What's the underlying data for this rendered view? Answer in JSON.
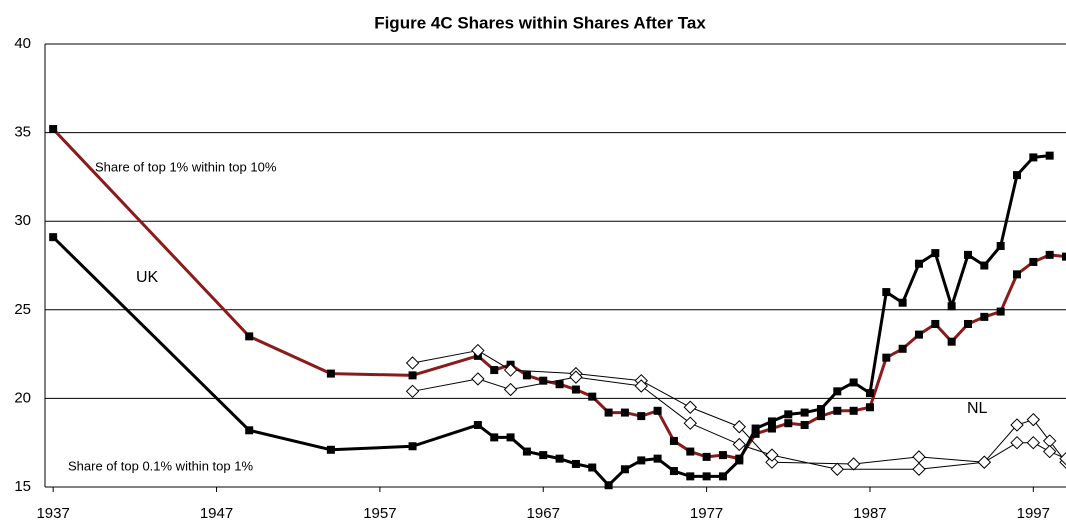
{
  "chart_data": {
    "type": "line",
    "title": "Figure 4C  Shares within Shares After Tax",
    "annotations": [
      "Share of top 1% within top 10%",
      "UK",
      "NL",
      "Share of top 0.1% within top 1%"
    ],
    "xlim": [
      1936.5,
      1999
    ],
    "xticks": [
      1937,
      1947,
      1957,
      1967,
      1977,
      1987,
      1997
    ],
    "ylim": [
      15,
      40
    ],
    "yticks": [
      15,
      20,
      25,
      30,
      35,
      40
    ],
    "grid": true,
    "series": [
      {
        "color": "#8b1a1a",
        "marker": "square",
        "line_width": 3,
        "x": [
          1937,
          1949,
          1954,
          1959,
          1963,
          1964,
          1965,
          1966,
          1967,
          1968,
          1969,
          1970,
          1971,
          1972,
          1973,
          1974,
          1975,
          1976,
          1977,
          1978,
          1979,
          1980,
          1981,
          1982,
          1983,
          1984,
          1985,
          1986,
          1987,
          1988,
          1989,
          1990,
          1991,
          1992,
          1993,
          1994,
          1995,
          1996,
          1997,
          1998,
          1999
        ],
        "values": [
          35.2,
          23.5,
          21.4,
          21.3,
          22.4,
          21.6,
          21.9,
          21.3,
          21.0,
          20.8,
          20.5,
          20.1,
          19.2,
          19.2,
          19.0,
          19.3,
          17.6,
          17.0,
          16.7,
          16.8,
          16.6,
          18.0,
          18.3,
          18.6,
          18.5,
          19.0,
          19.3,
          19.3,
          19.5,
          22.3,
          22.8,
          23.6,
          24.2,
          23.2,
          24.2,
          24.6,
          24.9,
          27.0,
          27.7,
          28.1,
          28.0
        ]
      },
      {
        "color": "#000000",
        "marker": "square",
        "line_width": 3,
        "x": [
          1937,
          1949,
          1954,
          1959,
          1963,
          1964,
          1965,
          1966,
          1967,
          1968,
          1969,
          1970,
          1971,
          1972,
          1973,
          1974,
          1975,
          1976,
          1977,
          1978,
          1979,
          1980,
          1981,
          1982,
          1983,
          1984,
          1985,
          1986,
          1987,
          1988,
          1989,
          1990,
          1991,
          1992,
          1993,
          1994,
          1995,
          1996,
          1997,
          1998
        ],
        "values": [
          29.1,
          18.2,
          17.1,
          17.3,
          18.5,
          17.8,
          17.8,
          17.0,
          16.8,
          16.6,
          16.3,
          16.1,
          15.1,
          16.0,
          16.5,
          16.6,
          15.9,
          15.6,
          15.6,
          15.6,
          16.5,
          18.3,
          18.7,
          19.1,
          19.2,
          19.4,
          20.4,
          20.9,
          20.3,
          26.0,
          25.4,
          27.6,
          28.2,
          25.2,
          28.1,
          27.5,
          28.6,
          32.6,
          33.6,
          33.7
        ]
      },
      {
        "color": "#000000",
        "marker": "diamond",
        "line_width": 1,
        "x": [
          1959,
          1963,
          1965,
          1969,
          1973,
          1976,
          1979,
          1981,
          1986,
          1990,
          1994,
          1996,
          1997,
          1998,
          1999
        ],
        "values": [
          22.0,
          22.7,
          21.6,
          21.4,
          21.0,
          19.5,
          18.4,
          16.4,
          16.3,
          16.7,
          16.4,
          18.5,
          18.8,
          17.6,
          16.4
        ]
      },
      {
        "color": "#000000",
        "marker": "diamond",
        "line_width": 1,
        "x": [
          1959,
          1963,
          1965,
          1969,
          1973,
          1976,
          1979,
          1981,
          1985,
          1990,
          1994,
          1996,
          1997,
          1998,
          1999
        ],
        "values": [
          20.4,
          21.1,
          20.5,
          21.2,
          20.7,
          18.6,
          17.4,
          16.8,
          16.0,
          16.0,
          16.4,
          17.5,
          17.5,
          17.0,
          16.6
        ]
      }
    ]
  }
}
